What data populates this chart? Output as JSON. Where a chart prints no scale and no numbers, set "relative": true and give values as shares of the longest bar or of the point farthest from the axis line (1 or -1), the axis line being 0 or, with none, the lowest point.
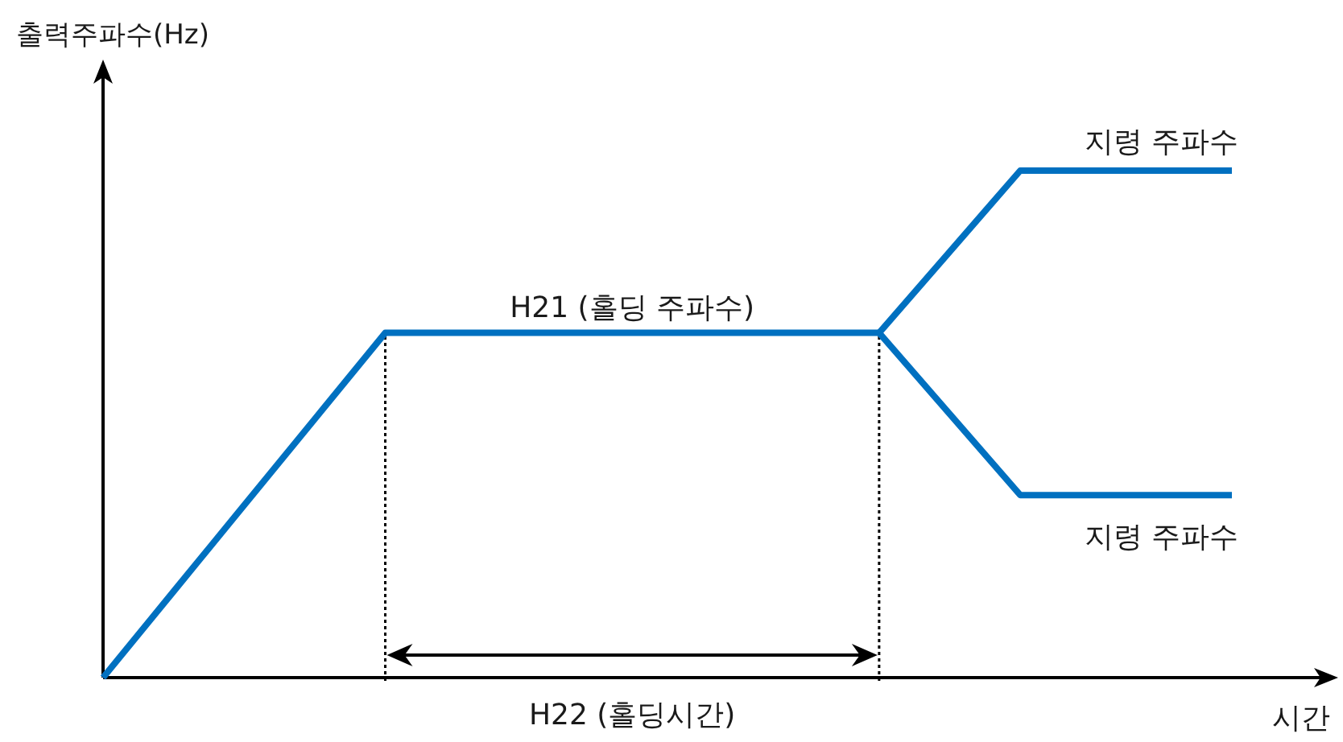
{
  "chart_data": {
    "type": "line",
    "relative": true,
    "xlabel": "시간",
    "ylabel": "출력주파수(Hz)",
    "categories": [
      null,
      null,
      null,
      null,
      null,
      null,
      null,
      null,
      null,
      null,
      null,
      null,
      null,
      null,
      null,
      null,
      null
    ],
    "series": [
      {
        "color": "#0070c0",
        "values": [
          0,
          0.17,
          0.34,
          0.51,
          0.68,
          0.68,
          0.68,
          0.68,
          0.68,
          0.68,
          0.68,
          0.68,
          null,
          null,
          null,
          null,
          null
        ]
      },
      {
        "name": "지령 주파수",
        "color": "#0070c0",
        "values": [
          null,
          null,
          null,
          null,
          null,
          null,
          null,
          null,
          null,
          null,
          null,
          0.68,
          0.84,
          1,
          1,
          1,
          1
        ]
      },
      {
        "name": "지령 주파수",
        "color": "#0070c0",
        "values": [
          null,
          null,
          null,
          null,
          null,
          null,
          null,
          null,
          null,
          null,
          null,
          0.68,
          0.52,
          0.36,
          0.36,
          0.36,
          0.36
        ]
      }
    ],
    "annotations": [
      {
        "text": "H21 (홀딩 주파수)",
        "y": 0.68
      },
      "H22 (홀딩시간)"
    ]
  }
}
